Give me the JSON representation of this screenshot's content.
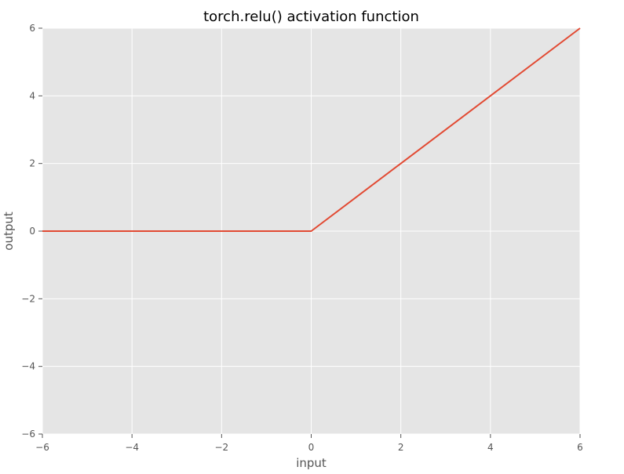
{
  "chart_data": {
    "type": "line",
    "title": "torch.relu() activation function",
    "xlabel": "input",
    "ylabel": "output",
    "xlim": [
      -6,
      6
    ],
    "ylim": [
      -6,
      6
    ],
    "x_ticks": [
      -6,
      -4,
      -2,
      0,
      2,
      4,
      6
    ],
    "y_ticks": [
      -6,
      -4,
      -2,
      0,
      2,
      4,
      6
    ],
    "x_tick_labels": [
      "−6",
      "−4",
      "−2",
      "0",
      "2",
      "4",
      "6"
    ],
    "y_tick_labels": [
      "−6",
      "−4",
      "−2",
      "0",
      "2",
      "4",
      "6"
    ],
    "grid": true,
    "series": [
      {
        "x": [
          -6,
          -4,
          -2,
          0,
          2,
          4,
          6
        ],
        "y": [
          0,
          0,
          0,
          0,
          2,
          4,
          6
        ],
        "color": "#E24A33"
      }
    ],
    "background_color": "#E5E5E5",
    "grid_color": "#FFFFFF"
  }
}
